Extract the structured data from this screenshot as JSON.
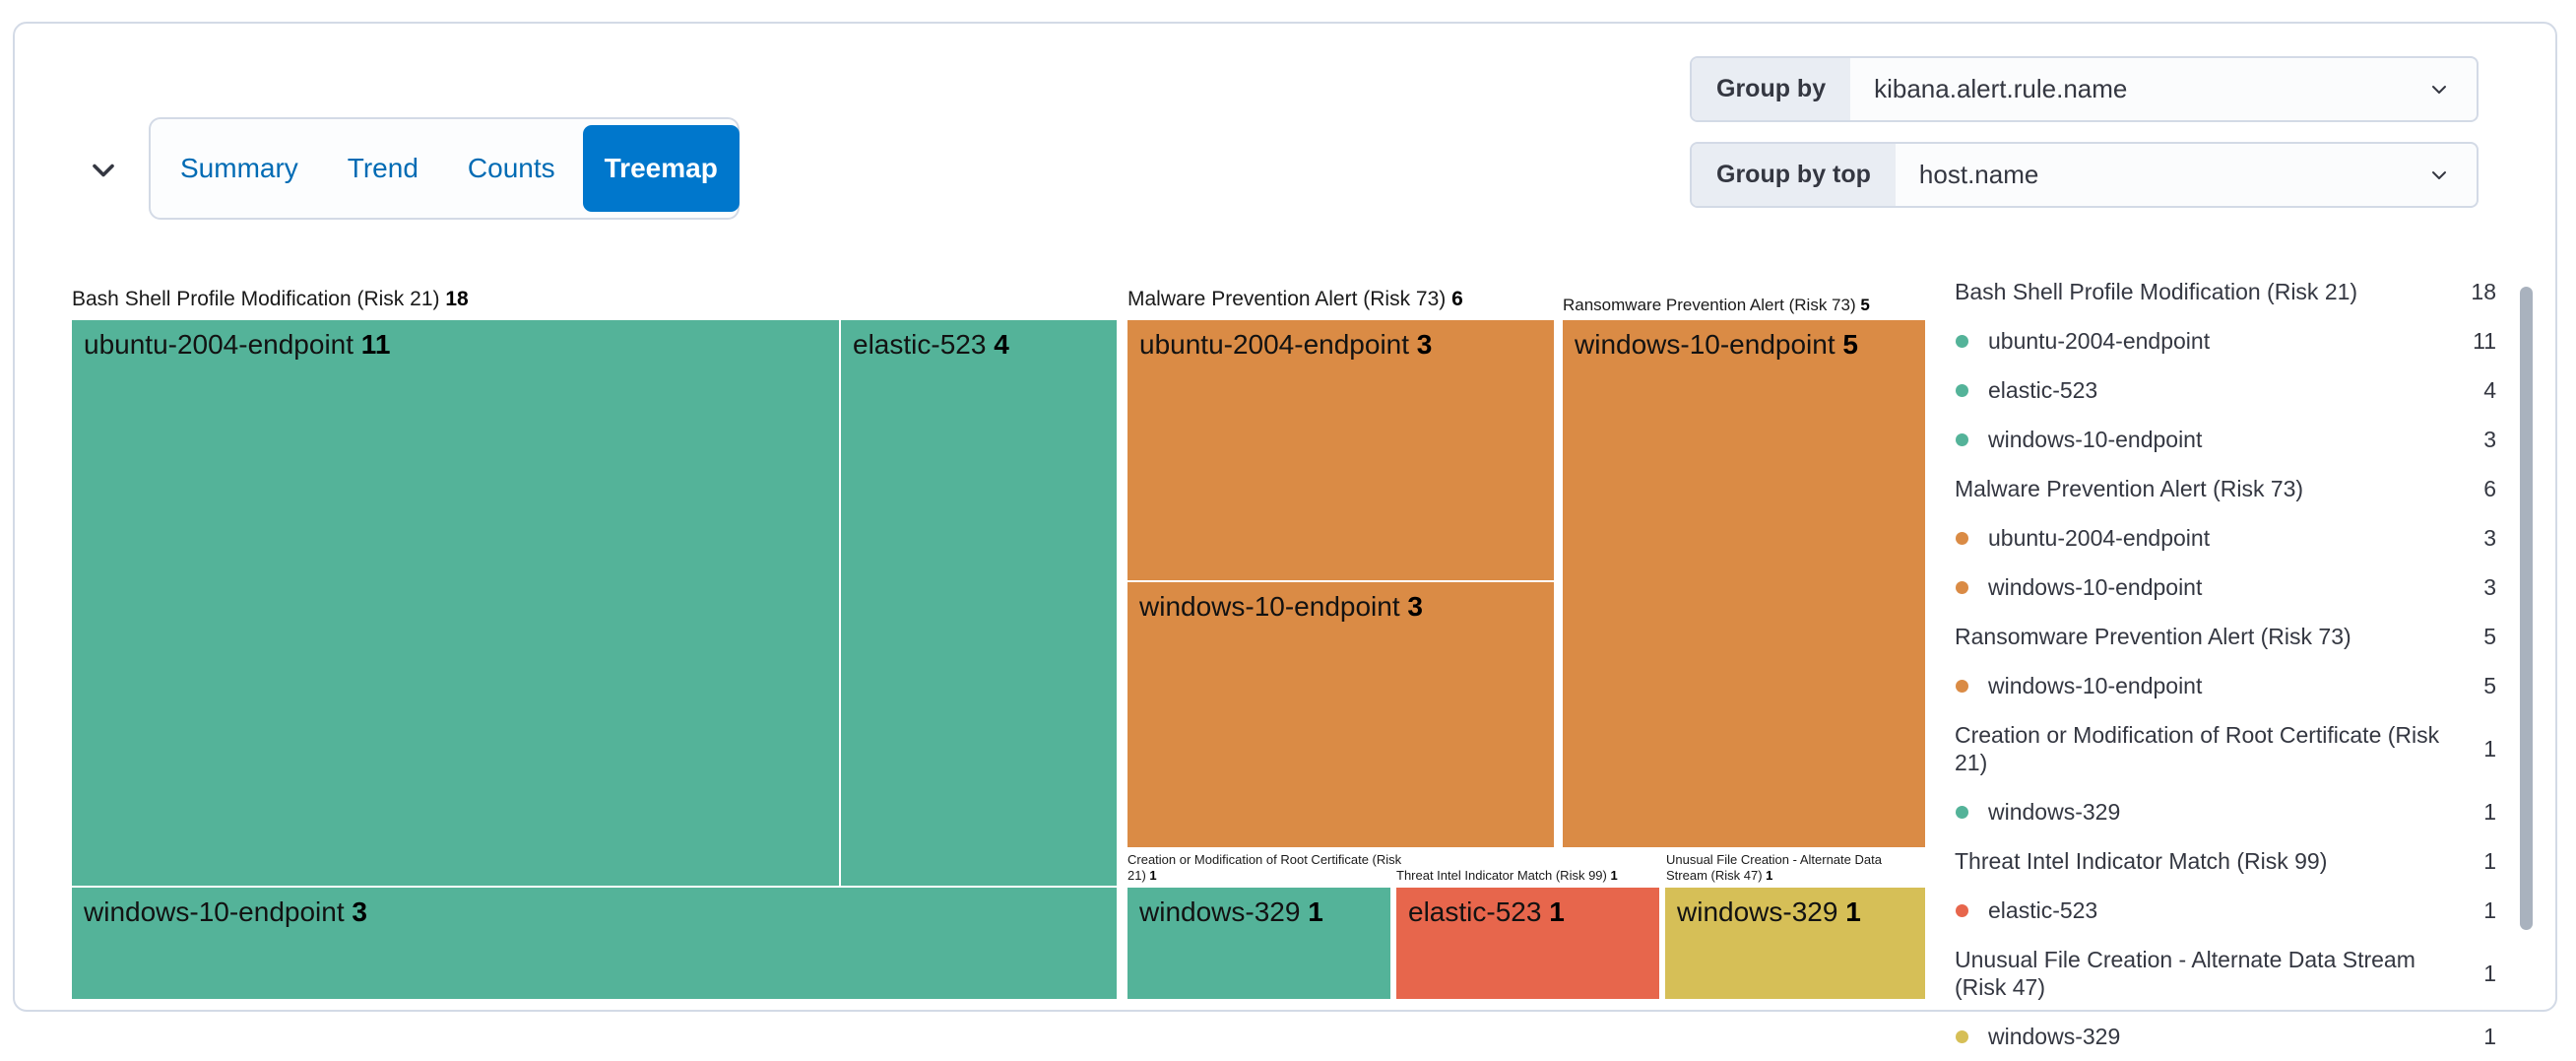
{
  "panel": {
    "tabs": [
      {
        "label": "Summary",
        "selected": false
      },
      {
        "label": "Trend",
        "selected": false
      },
      {
        "label": "Counts",
        "selected": false
      },
      {
        "label": "Treemap",
        "selected": true
      }
    ],
    "group_by": {
      "label": "Group by",
      "value": "kibana.alert.rule.name"
    },
    "group_by_top": {
      "label": "Group by top",
      "value": "host.name"
    }
  },
  "colors": {
    "risk_low": "#54B399",
    "risk_medium": "#D6BF57",
    "risk_high": "#DA8B45",
    "risk_critical": "#E7664C",
    "selected_tab_bg": "#0077CC",
    "tab_text": "#006BB4",
    "text": "#343741",
    "border": "#D3DAE6"
  },
  "chart_data": {
    "type": "treemap",
    "group_by_field": "kibana.alert.rule.name",
    "group_by_top_field": "host.name",
    "groups": [
      {
        "label": "Bash Shell Profile Modification (Risk 21)",
        "value": 18,
        "color": "#54B399",
        "children": [
          {
            "label": "ubuntu-2004-endpoint",
            "value": 11
          },
          {
            "label": "elastic-523",
            "value": 4
          },
          {
            "label": "windows-10-endpoint",
            "value": 3
          }
        ]
      },
      {
        "label": "Malware Prevention Alert (Risk 73)",
        "value": 6,
        "color": "#DA8B45",
        "children": [
          {
            "label": "ubuntu-2004-endpoint",
            "value": 3
          },
          {
            "label": "windows-10-endpoint",
            "value": 3
          }
        ]
      },
      {
        "label": "Ransomware Prevention Alert (Risk 73)",
        "value": 5,
        "color": "#DA8B45",
        "children": [
          {
            "label": "windows-10-endpoint",
            "value": 5
          }
        ]
      },
      {
        "label": "Creation or Modification of Root Certificate (Risk 21)",
        "value": 1,
        "color": "#54B399",
        "children": [
          {
            "label": "windows-329",
            "value": 1
          }
        ]
      },
      {
        "label": "Threat Intel Indicator Match (Risk 99)",
        "value": 1,
        "color": "#E7664C",
        "children": [
          {
            "label": "elastic-523",
            "value": 1
          }
        ]
      },
      {
        "label": "Unusual File Creation - Alternate Data Stream (Risk 47)",
        "value": 1,
        "color": "#D6BF57",
        "children": [
          {
            "label": "windows-329",
            "value": 1
          }
        ]
      }
    ]
  }
}
